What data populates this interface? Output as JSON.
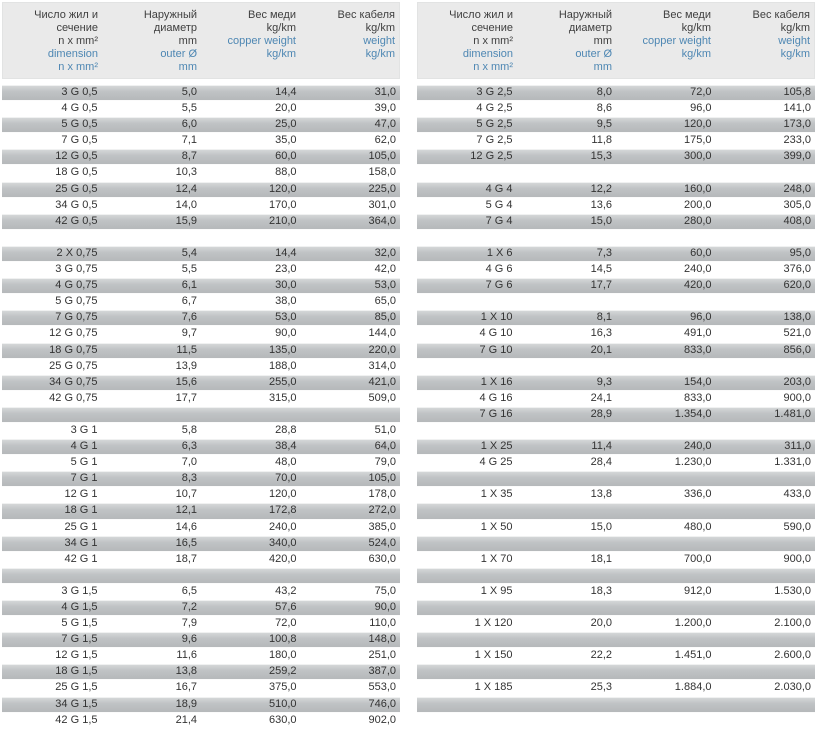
{
  "colors": {
    "header_bg": "#eaeaea",
    "accent_blue": "#4e87b3",
    "row_gray": "#bcbfc1",
    "row_white": "#ffffff",
    "text": "#333333"
  },
  "header_columns": [
    {
      "black": [
        "Число жил и",
        "сечение",
        "n x mm²"
      ],
      "blue": [
        "dimension",
        "n x mm²"
      ]
    },
    {
      "black": [
        "Наружный",
        "диаметр",
        "mm"
      ],
      "blue": [
        "outer Ø",
        "mm"
      ]
    },
    {
      "black": [
        "Вес меди",
        "kg/km"
      ],
      "blue": [
        "copper weight",
        "kg/km"
      ]
    },
    {
      "black": [
        "Вес кабеля",
        "kg/km"
      ],
      "blue": [
        "weight",
        "kg/km"
      ]
    }
  ],
  "tables": [
    {
      "rows": [
        {
          "shade": "gray",
          "cells": [
            "3 G 0,5",
            "5,0",
            "14,4",
            "31,0"
          ]
        },
        {
          "shade": "white",
          "cells": [
            "4 G 0,5",
            "5,5",
            "20,0",
            "39,0"
          ]
        },
        {
          "shade": "gray",
          "cells": [
            "5 G 0,5",
            "6,0",
            "25,0",
            "47,0"
          ]
        },
        {
          "shade": "white",
          "cells": [
            "7 G 0,5",
            "7,1",
            "35,0",
            "62,0"
          ]
        },
        {
          "shade": "gray",
          "cells": [
            "12 G 0,5",
            "8,7",
            "60,0",
            "105,0"
          ]
        },
        {
          "shade": "white",
          "cells": [
            "18 G 0,5",
            "10,3",
            "88,0",
            "158,0"
          ]
        },
        {
          "shade": "gray",
          "cells": [
            "25 G 0,5",
            "12,4",
            "120,0",
            "225,0"
          ]
        },
        {
          "shade": "white",
          "cells": [
            "34 G 0,5",
            "14,0",
            "170,0",
            "301,0"
          ]
        },
        {
          "shade": "gray",
          "cells": [
            "42 G 0,5",
            "15,9",
            "210,0",
            "364,0"
          ]
        },
        {
          "shade": "white",
          "cells": []
        },
        {
          "shade": "gray",
          "cells": [
            "2 X 0,75",
            "5,4",
            "14,4",
            "32,0"
          ]
        },
        {
          "shade": "white",
          "cells": [
            "3 G 0,75",
            "5,5",
            "23,0",
            "42,0"
          ]
        },
        {
          "shade": "gray",
          "cells": [
            "4 G 0,75",
            "6,1",
            "30,0",
            "53,0"
          ]
        },
        {
          "shade": "white",
          "cells": [
            "5 G 0,75",
            "6,7",
            "38,0",
            "65,0"
          ]
        },
        {
          "shade": "gray",
          "cells": [
            "7 G 0,75",
            "7,6",
            "53,0",
            "85,0"
          ]
        },
        {
          "shade": "white",
          "cells": [
            "12 G 0,75",
            "9,7",
            "90,0",
            "144,0"
          ]
        },
        {
          "shade": "gray",
          "cells": [
            "18 G 0,75",
            "11,5",
            "135,0",
            "220,0"
          ]
        },
        {
          "shade": "white",
          "cells": [
            "25 G 0,75",
            "13,9",
            "188,0",
            "314,0"
          ]
        },
        {
          "shade": "gray",
          "cells": [
            "34 G 0,75",
            "15,6",
            "255,0",
            "421,0"
          ]
        },
        {
          "shade": "white",
          "cells": [
            "42 G 0,75",
            "17,7",
            "315,0",
            "509,0"
          ]
        },
        {
          "shade": "gray",
          "cells": []
        },
        {
          "shade": "white",
          "cells": [
            "3 G 1",
            "5,8",
            "28,8",
            "51,0"
          ]
        },
        {
          "shade": "gray",
          "cells": [
            "4 G 1",
            "6,3",
            "38,4",
            "64,0"
          ]
        },
        {
          "shade": "white",
          "cells": [
            "5 G 1",
            "7,0",
            "48,0",
            "79,0"
          ]
        },
        {
          "shade": "gray",
          "cells": [
            "7 G 1",
            "8,3",
            "70,0",
            "105,0"
          ]
        },
        {
          "shade": "white",
          "cells": [
            "12 G 1",
            "10,7",
            "120,0",
            "178,0"
          ]
        },
        {
          "shade": "gray",
          "cells": [
            "18 G 1",
            "12,1",
            "172,8",
            "272,0"
          ]
        },
        {
          "shade": "white",
          "cells": [
            "25 G 1",
            "14,6",
            "240,0",
            "385,0"
          ]
        },
        {
          "shade": "gray",
          "cells": [
            "34 G 1",
            "16,5",
            "340,0",
            "524,0"
          ]
        },
        {
          "shade": "white",
          "cells": [
            "42 G 1",
            "18,7",
            "420,0",
            "630,0"
          ]
        },
        {
          "shade": "gray",
          "cells": []
        },
        {
          "shade": "white",
          "cells": [
            "3 G 1,5",
            "6,5",
            "43,2",
            "75,0"
          ]
        },
        {
          "shade": "gray",
          "cells": [
            "4 G 1,5",
            "7,2",
            "57,6",
            "90,0"
          ]
        },
        {
          "shade": "white",
          "cells": [
            "5 G 1,5",
            "7,9",
            "72,0",
            "110,0"
          ]
        },
        {
          "shade": "gray",
          "cells": [
            "7 G 1,5",
            "9,6",
            "100,8",
            "148,0"
          ]
        },
        {
          "shade": "white",
          "cells": [
            "12 G 1,5",
            "11,6",
            "180,0",
            "251,0"
          ]
        },
        {
          "shade": "gray",
          "cells": [
            "18 G 1,5",
            "13,8",
            "259,2",
            "387,0"
          ]
        },
        {
          "shade": "white",
          "cells": [
            "25 G 1,5",
            "16,7",
            "375,0",
            "553,0"
          ]
        },
        {
          "shade": "gray",
          "cells": [
            "34 G 1,5",
            "18,9",
            "510,0",
            "746,0"
          ]
        },
        {
          "shade": "white",
          "cells": [
            "42 G 1,5",
            "21,4",
            "630,0",
            "902,0"
          ]
        }
      ]
    },
    {
      "rows": [
        {
          "shade": "gray",
          "cells": [
            "3 G 2,5",
            "8,0",
            "72,0",
            "105,8"
          ]
        },
        {
          "shade": "white",
          "cells": [
            "4 G 2,5",
            "8,6",
            "96,0",
            "141,0"
          ]
        },
        {
          "shade": "gray",
          "cells": [
            "5 G 2,5",
            "9,5",
            "120,0",
            "173,0"
          ]
        },
        {
          "shade": "white",
          "cells": [
            "7 G 2,5",
            "11,8",
            "175,0",
            "233,0"
          ]
        },
        {
          "shade": "gray",
          "cells": [
            "12 G 2,5",
            "15,3",
            "300,0",
            "399,0"
          ]
        },
        {
          "shade": "white",
          "cells": []
        },
        {
          "shade": "gray",
          "cells": [
            "4 G 4",
            "12,2",
            "160,0",
            "248,0"
          ]
        },
        {
          "shade": "white",
          "cells": [
            "5 G 4",
            "13,6",
            "200,0",
            "305,0"
          ]
        },
        {
          "shade": "gray",
          "cells": [
            "7 G 4",
            "15,0",
            "280,0",
            "408,0"
          ]
        },
        {
          "shade": "white",
          "cells": []
        },
        {
          "shade": "gray",
          "cells": [
            "1 X 6",
            "7,3",
            "60,0",
            "95,0"
          ]
        },
        {
          "shade": "white",
          "cells": [
            "4 G 6",
            "14,5",
            "240,0",
            "376,0"
          ]
        },
        {
          "shade": "gray",
          "cells": [
            "7 G 6",
            "17,7",
            "420,0",
            "620,0"
          ]
        },
        {
          "shade": "white",
          "cells": []
        },
        {
          "shade": "gray",
          "cells": [
            "1 X 10",
            "8,1",
            "96,0",
            "138,0"
          ]
        },
        {
          "shade": "white",
          "cells": [
            "4 G 10",
            "16,3",
            "491,0",
            "521,0"
          ]
        },
        {
          "shade": "gray",
          "cells": [
            "7 G 10",
            "20,1",
            "833,0",
            "856,0"
          ]
        },
        {
          "shade": "white",
          "cells": []
        },
        {
          "shade": "gray",
          "cells": [
            "1 X 16",
            "9,3",
            "154,0",
            "203,0"
          ]
        },
        {
          "shade": "white",
          "cells": [
            "4 G 16",
            "24,1",
            "833,0",
            "900,0"
          ]
        },
        {
          "shade": "gray",
          "cells": [
            "7 G 16",
            "28,9",
            "1.354,0",
            "1.481,0"
          ]
        },
        {
          "shade": "white",
          "cells": []
        },
        {
          "shade": "gray",
          "cells": [
            "1 X 25",
            "11,4",
            "240,0",
            "311,0"
          ]
        },
        {
          "shade": "white",
          "cells": [
            "4 G 25",
            "28,4",
            "1.230,0",
            "1.331,0"
          ]
        },
        {
          "shade": "gray",
          "cells": []
        },
        {
          "shade": "white",
          "cells": [
            "1 X 35",
            "13,8",
            "336,0",
            "433,0"
          ]
        },
        {
          "shade": "gray",
          "cells": []
        },
        {
          "shade": "white",
          "cells": [
            "1 X 50",
            "15,0",
            "480,0",
            "590,0"
          ]
        },
        {
          "shade": "gray",
          "cells": []
        },
        {
          "shade": "white",
          "cells": [
            "1 X 70",
            "18,1",
            "700,0",
            "900,0"
          ]
        },
        {
          "shade": "gray",
          "cells": []
        },
        {
          "shade": "white",
          "cells": [
            "1 X 95",
            "18,3",
            "912,0",
            "1.530,0"
          ]
        },
        {
          "shade": "gray",
          "cells": []
        },
        {
          "shade": "white",
          "cells": [
            "1 X 120",
            "20,0",
            "1.200,0",
            "2.100,0"
          ]
        },
        {
          "shade": "gray",
          "cells": []
        },
        {
          "shade": "white",
          "cells": [
            "1 X 150",
            "22,2",
            "1.451,0",
            "2.600,0"
          ]
        },
        {
          "shade": "gray",
          "cells": []
        },
        {
          "shade": "white",
          "cells": [
            "1 X 185",
            "25,3",
            "1.884,0",
            "2.030,0"
          ]
        },
        {
          "shade": "gray",
          "cells": []
        },
        {
          "shade": "white",
          "cells": []
        }
      ]
    }
  ]
}
